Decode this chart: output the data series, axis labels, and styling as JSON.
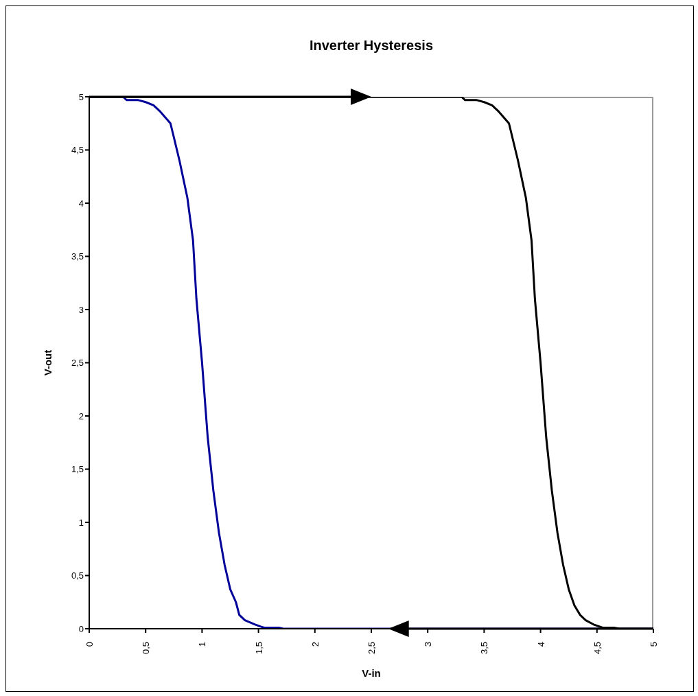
{
  "chart_data": {
    "type": "line",
    "title": "Inverter Hysteresis",
    "xlabel": "V-in",
    "ylabel": "V-out",
    "xlim": [
      0,
      5
    ],
    "ylim": [
      0,
      5
    ],
    "xticks": [
      0,
      {
        "value": 0.5,
        "label": "0,5"
      },
      1,
      {
        "value": 1.5,
        "label": "1,5"
      },
      2,
      {
        "value": 2.5,
        "label": "2,5"
      },
      3,
      {
        "value": 3.5,
        "label": "3,5"
      },
      4,
      {
        "value": 4.5,
        "label": "4,5"
      },
      5
    ],
    "yticks": [
      0,
      {
        "value": 0.5,
        "label": "0,5"
      },
      1,
      {
        "value": 1.5,
        "label": "1,5"
      },
      2,
      {
        "value": 2.5,
        "label": "2,5"
      },
      3,
      {
        "value": 3.5,
        "label": "3,5"
      },
      4,
      {
        "value": 4.5,
        "label": "4,5"
      },
      5
    ],
    "marker": "none",
    "line_style": "solid",
    "series": [
      {
        "color": "#000099",
        "x": [
          0,
          0.3,
          0.33,
          0.43,
          0.5,
          0.57,
          0.63,
          0.72,
          0.8,
          0.87,
          0.92,
          0.95,
          1.0,
          1.05,
          1.1,
          1.15,
          1.2,
          1.25,
          1.3,
          1.33,
          1.38,
          1.47,
          1.52,
          1.55,
          1.68,
          1.72,
          5
        ],
        "values": [
          5,
          5,
          4.97,
          4.97,
          4.95,
          4.92,
          4.86,
          4.75,
          4.4,
          4.05,
          3.65,
          3.1,
          2.5,
          1.8,
          1.3,
          0.9,
          0.6,
          0.37,
          0.25,
          0.13,
          0.08,
          0.04,
          0.02,
          0.01,
          0.01,
          0,
          0
        ]
      },
      {
        "color": "#000000",
        "x": [
          0,
          3.3,
          3.33,
          3.43,
          3.5,
          3.57,
          3.63,
          3.72,
          3.8,
          3.87,
          3.92,
          3.95,
          4.0,
          4.05,
          4.1,
          4.15,
          4.2,
          4.25,
          4.3,
          4.35,
          4.4,
          4.47,
          4.55,
          4.65,
          4.7,
          5
        ],
        "values": [
          5,
          5,
          4.97,
          4.97,
          4.95,
          4.92,
          4.86,
          4.75,
          4.4,
          4.05,
          3.65,
          3.1,
          2.5,
          1.8,
          1.3,
          0.9,
          0.6,
          0.37,
          0.22,
          0.13,
          0.08,
          0.04,
          0.01,
          0.01,
          0,
          0
        ]
      }
    ]
  }
}
